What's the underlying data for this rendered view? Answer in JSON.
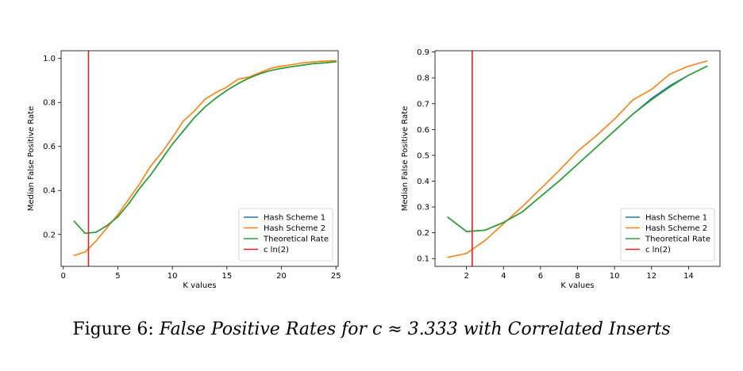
{
  "chart_data": [
    {
      "type": "line",
      "title": "",
      "xlabel": "K values",
      "ylabel": "Median False Positive Rate",
      "xlim": [
        -0.2,
        25.2
      ],
      "ylim": [
        0.055,
        1.035
      ],
      "xticks": [
        0,
        5,
        10,
        15,
        20,
        25
      ],
      "yticks": [
        0.2,
        0.4,
        0.6,
        0.8,
        1.0
      ],
      "ytick_labels": [
        "0.2",
        "0.4",
        "0.6",
        "0.8",
        "1.0"
      ],
      "grid": false,
      "legend_position": "lower-right",
      "series": [
        {
          "name": "Hash Scheme 1",
          "color": "#1f77b4",
          "x": [
            1,
            2,
            3,
            4,
            5,
            6,
            7,
            8,
            9,
            10,
            11,
            12,
            13,
            14,
            15,
            16,
            17,
            18,
            19,
            20,
            21,
            22,
            23,
            24,
            25
          ],
          "y": [
            0.26,
            0.205,
            0.21,
            0.24,
            0.28,
            0.34,
            0.41,
            0.47,
            0.54,
            0.61,
            0.67,
            0.73,
            0.78,
            0.82,
            0.855,
            0.885,
            0.91,
            0.93,
            0.945,
            0.955,
            0.963,
            0.97,
            0.977,
            0.98,
            0.985
          ]
        },
        {
          "name": "Hash Scheme 2",
          "color": "#ff7f0e",
          "x": [
            1,
            2,
            3,
            4,
            5,
            6,
            7,
            8,
            9,
            10,
            11,
            12,
            13,
            14,
            15,
            16,
            17,
            18,
            19,
            20,
            21,
            22,
            23,
            24,
            25
          ],
          "y": [
            0.105,
            0.12,
            0.17,
            0.23,
            0.29,
            0.36,
            0.43,
            0.51,
            0.57,
            0.64,
            0.715,
            0.76,
            0.815,
            0.845,
            0.87,
            0.905,
            0.915,
            0.935,
            0.955,
            0.965,
            0.972,
            0.98,
            0.985,
            0.988,
            0.99
          ]
        },
        {
          "name": "Theoretical Rate",
          "color": "#2ca02c",
          "x": [
            1,
            2,
            3,
            4,
            5,
            6,
            7,
            8,
            9,
            10,
            11,
            12,
            13,
            14,
            15,
            16,
            17,
            18,
            19,
            20,
            21,
            22,
            23,
            24,
            25
          ],
          "y": [
            0.26,
            0.205,
            0.21,
            0.24,
            0.28,
            0.34,
            0.41,
            0.47,
            0.54,
            0.61,
            0.67,
            0.73,
            0.78,
            0.82,
            0.855,
            0.885,
            0.91,
            0.93,
            0.945,
            0.955,
            0.963,
            0.97,
            0.977,
            0.98,
            0.985
          ]
        }
      ],
      "vline": {
        "name": "c ln(2)",
        "color": "#d62728",
        "x": 2.31
      }
    },
    {
      "type": "line",
      "title": "",
      "xlabel": "K values",
      "ylabel": "Median False Positive Rate",
      "xlim": [
        0.3,
        15.7
      ],
      "ylim": [
        0.07,
        0.905
      ],
      "xticks": [
        2,
        4,
        6,
        8,
        10,
        12,
        14
      ],
      "yticks": [
        0.1,
        0.2,
        0.3,
        0.4,
        0.5,
        0.6,
        0.7,
        0.8,
        0.9
      ],
      "ytick_labels": [
        "0.1",
        "0.2",
        "0.3",
        "0.4",
        "0.5",
        "0.6",
        "0.7",
        "0.8",
        "0.9"
      ],
      "grid": false,
      "legend_position": "lower-right",
      "series": [
        {
          "name": "Hash Scheme 1",
          "color": "#1f77b4",
          "x": [
            1,
            2,
            3,
            4,
            5,
            6,
            7,
            8,
            9,
            10,
            11,
            12,
            13,
            14,
            15
          ],
          "y": [
            0.26,
            0.205,
            0.21,
            0.24,
            0.28,
            0.34,
            0.4,
            0.465,
            0.53,
            0.595,
            0.66,
            0.72,
            0.77,
            0.81,
            0.845
          ]
        },
        {
          "name": "Hash Scheme 2",
          "color": "#ff7f0e",
          "x": [
            1,
            2,
            3,
            4,
            5,
            6,
            7,
            8,
            9,
            10,
            11,
            12,
            13,
            14,
            15
          ],
          "y": [
            0.105,
            0.12,
            0.17,
            0.235,
            0.3,
            0.37,
            0.44,
            0.515,
            0.575,
            0.64,
            0.715,
            0.755,
            0.815,
            0.845,
            0.865
          ]
        },
        {
          "name": "Theoretical Rate",
          "color": "#2ca02c",
          "x": [
            1,
            2,
            3,
            4,
            5,
            6,
            7,
            8,
            9,
            10,
            11,
            12,
            13,
            14,
            15
          ],
          "y": [
            0.26,
            0.205,
            0.21,
            0.24,
            0.28,
            0.34,
            0.4,
            0.465,
            0.53,
            0.595,
            0.66,
            0.715,
            0.765,
            0.81,
            0.845
          ]
        }
      ],
      "vline": {
        "name": "c ln(2)",
        "color": "#d62728",
        "x": 2.31
      }
    }
  ],
  "caption": {
    "prefix": "Figure 6: ",
    "text": "False Positive Rates for c ≈ 3.333 with Correlated Inserts"
  }
}
